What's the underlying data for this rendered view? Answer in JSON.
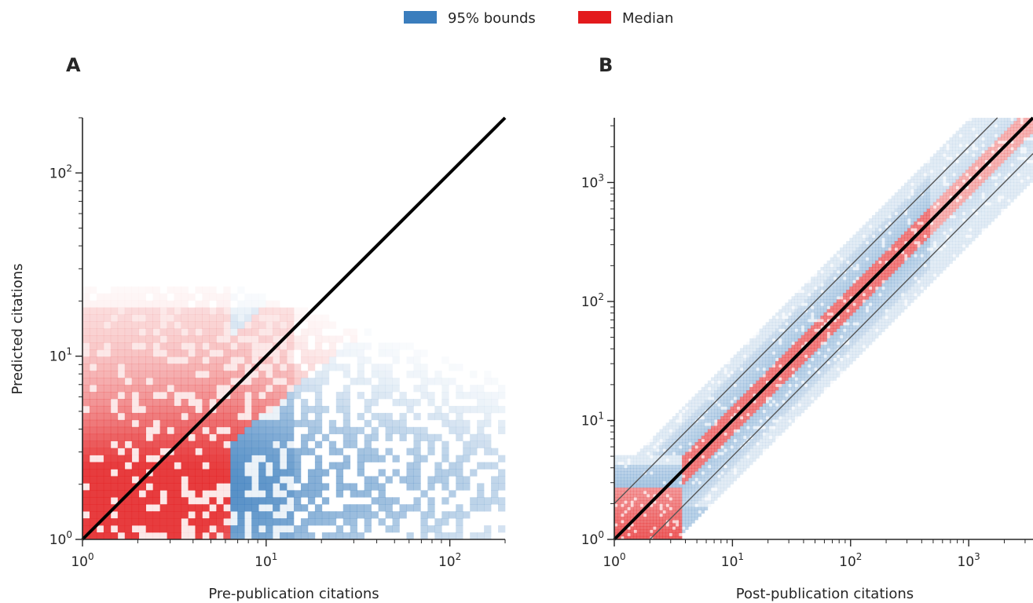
{
  "legend": {
    "items": [
      {
        "label": "95% bounds",
        "color": "#3a7dbd"
      },
      {
        "label": "Median",
        "color": "#e31a1c"
      }
    ],
    "placement": "top-center"
  },
  "colors": {
    "bounds": "#3a7dbd",
    "median": "#e31a1c",
    "identity_line": "#000000",
    "guide_lines": "#555555"
  },
  "chart_data": [
    {
      "panel": "A",
      "type": "heatmap",
      "xlabel": "Pre-publication citations",
      "ylabel": "Predicted citations",
      "xscale": "log",
      "yscale": "log",
      "xlim": [
        1,
        200
      ],
      "ylim": [
        1,
        200
      ],
      "xticks": [
        {
          "base": "10",
          "exp": "0",
          "value": 1
        },
        {
          "base": "10",
          "exp": "1",
          "value": 10
        },
        {
          "base": "10",
          "exp": "2",
          "value": 100
        }
      ],
      "yticks": [
        {
          "base": "10",
          "exp": "0",
          "value": 1
        },
        {
          "base": "10",
          "exp": "1",
          "value": 10
        },
        {
          "base": "10",
          "exp": "2",
          "value": 100
        }
      ],
      "reference_lines": [
        {
          "kind": "identity",
          "slope": 1
        }
      ],
      "grid": false,
      "series": [
        {
          "name": "95% bounds",
          "layer": "2D histogram density"
        },
        {
          "name": "Median",
          "layer": "2D histogram density"
        }
      ]
    },
    {
      "panel": "B",
      "type": "heatmap",
      "xlabel": "Post-publication citations",
      "ylabel": "",
      "xscale": "log",
      "yscale": "log",
      "xlim": [
        1,
        3500
      ],
      "ylim": [
        1,
        3500
      ],
      "xticks": [
        {
          "base": "10",
          "exp": "0",
          "value": 1
        },
        {
          "base": "10",
          "exp": "1",
          "value": 10
        },
        {
          "base": "10",
          "exp": "2",
          "value": 100
        },
        {
          "base": "10",
          "exp": "3",
          "value": 1000
        }
      ],
      "yticks": [
        {
          "base": "10",
          "exp": "0",
          "value": 1
        },
        {
          "base": "10",
          "exp": "1",
          "value": 10
        },
        {
          "base": "10",
          "exp": "2",
          "value": 100
        },
        {
          "base": "10",
          "exp": "3",
          "value": 1000
        }
      ],
      "reference_lines": [
        {
          "kind": "identity",
          "slope": 1
        },
        {
          "kind": "guide",
          "factor": 2
        },
        {
          "kind": "guide",
          "factor": 0.5
        }
      ],
      "grid": false,
      "series": [
        {
          "name": "95% bounds",
          "layer": "2D histogram density"
        },
        {
          "name": "Median",
          "layer": "2D histogram density"
        }
      ]
    }
  ]
}
